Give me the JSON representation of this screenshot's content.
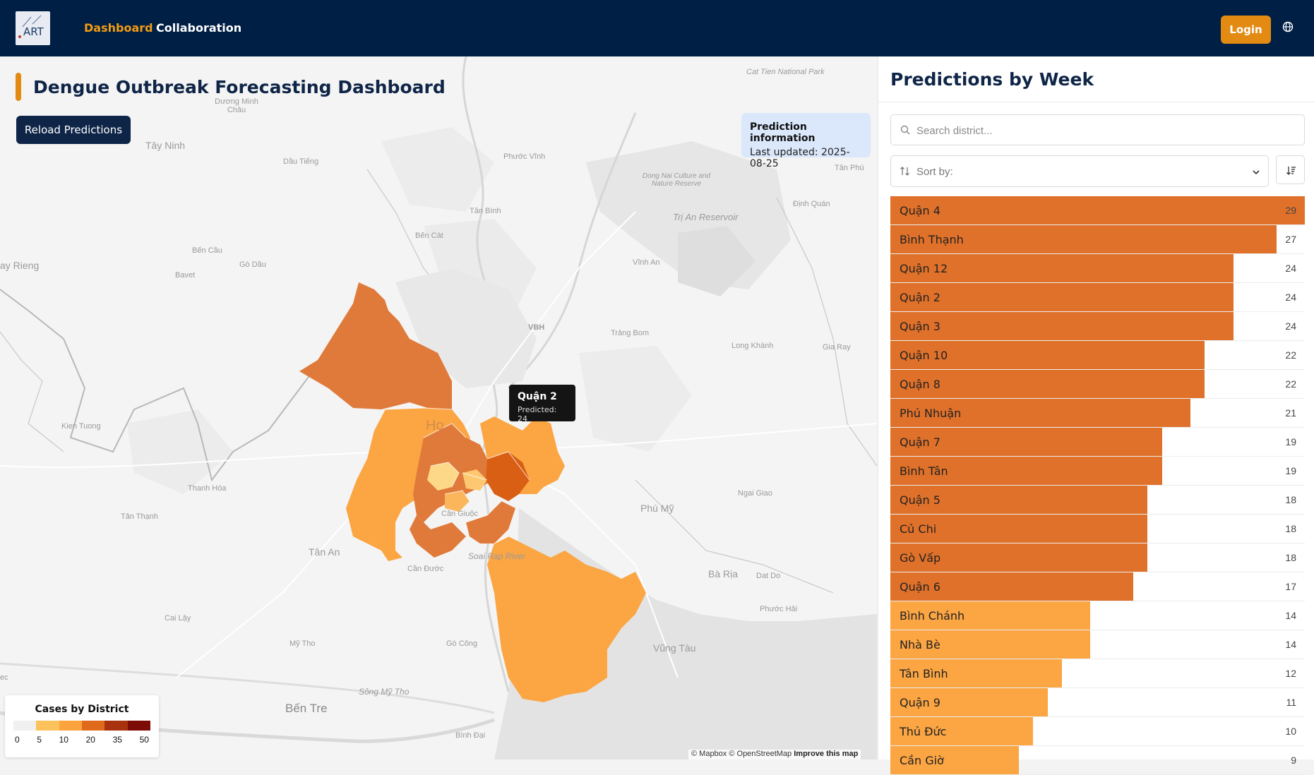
{
  "header": {
    "logo_text": "ART",
    "nav": [
      {
        "label": "Dashboard",
        "active": true
      },
      {
        "label": "Collaboration",
        "active": false
      }
    ],
    "login_label": "Login",
    "language_icon": "globe-icon"
  },
  "map": {
    "title": "Dengue Outbreak Forecasting Dashboard",
    "reload_label": "Reload Predictions",
    "info": {
      "heading": "Prediction information",
      "last_updated": "Last updated: 2025-08-25"
    },
    "tooltip": {
      "district": "Quận 2",
      "predicted": "Predicted: 24"
    },
    "legend": {
      "title": "Cases by District",
      "ticks": [
        "0",
        "5",
        "10",
        "20",
        "35",
        "50"
      ],
      "colors": [
        "#f0f0f0",
        "#fdc25c",
        "#fba33c",
        "#e06a1c",
        "#a8320d",
        "#7d0b06"
      ]
    },
    "attribution": {
      "text": "© Mapbox © OpenStreetMap",
      "improve": "Improve this map"
    },
    "place_labels": [
      "Cat Tien National Park",
      "Dương Minh Châu",
      "Tây Ninh",
      "Dầu Tiếng",
      "Phước Vĩnh",
      "Tân Phú",
      "Dong Nai Culture and Nature Reserve",
      "Định Quán",
      "Tân Bình",
      "Trị An Reservoir",
      "Bến Cát",
      "Bến Cầu",
      "Gò Dầu",
      "ay Rieng",
      "Bavet",
      "Vĩnh An",
      "VBH",
      "Trảng Bom",
      "Long Khánh",
      "Gia Ray",
      "Kien Tuong",
      "Ho",
      "Thanh Hóa",
      "Tân Thạnh",
      "Cần Giuộc",
      "Phú Mỹ",
      "Ngai Giao",
      "Tân An",
      "Soai Rap River",
      "Cần Đước",
      "Bà Rịa",
      "Dat Do",
      "Phước Hải",
      "Cai Lậy",
      "Mỹ Tho",
      "Gò Công",
      "Vũng Tàu",
      "Sông Mỹ Tho",
      "Bến Tre",
      "Bình Đại",
      "ec"
    ]
  },
  "panel": {
    "title": "Predictions by Week",
    "search_placeholder": "Search district...",
    "sort_label": "Sort by:",
    "max_value": 29,
    "districts": [
      {
        "name": "Quận 4",
        "value": 29,
        "color": "#e0712a"
      },
      {
        "name": "Bình Thạnh",
        "value": 27,
        "color": "#e0712a"
      },
      {
        "name": "Quận 12",
        "value": 24,
        "color": "#e0712a"
      },
      {
        "name": "Quận 2",
        "value": 24,
        "color": "#e0712a"
      },
      {
        "name": "Quận 3",
        "value": 24,
        "color": "#e0712a"
      },
      {
        "name": "Quận 10",
        "value": 22,
        "color": "#e0712a"
      },
      {
        "name": "Quận 8",
        "value": 22,
        "color": "#e0712a"
      },
      {
        "name": "Phú Nhuận",
        "value": 21,
        "color": "#e0712a"
      },
      {
        "name": "Quận 7",
        "value": 19,
        "color": "#e0712a"
      },
      {
        "name": "Bình Tân",
        "value": 19,
        "color": "#e0712a"
      },
      {
        "name": "Quận 5",
        "value": 18,
        "color": "#e0712a"
      },
      {
        "name": "Củ Chi",
        "value": 18,
        "color": "#e0712a"
      },
      {
        "name": "Gò Vấp",
        "value": 18,
        "color": "#e0712a"
      },
      {
        "name": "Quận 6",
        "value": 17,
        "color": "#e0712a"
      },
      {
        "name": "Bình Chánh",
        "value": 14,
        "color": "#fba543"
      },
      {
        "name": "Nhà Bè",
        "value": 14,
        "color": "#fba543"
      },
      {
        "name": "Tân Bình",
        "value": 12,
        "color": "#fba543"
      },
      {
        "name": "Quận 9",
        "value": 11,
        "color": "#fba543"
      },
      {
        "name": "Thủ Đức",
        "value": 10,
        "color": "#fba543"
      },
      {
        "name": "Cần Giờ",
        "value": 9,
        "color": "#fba543"
      }
    ]
  }
}
